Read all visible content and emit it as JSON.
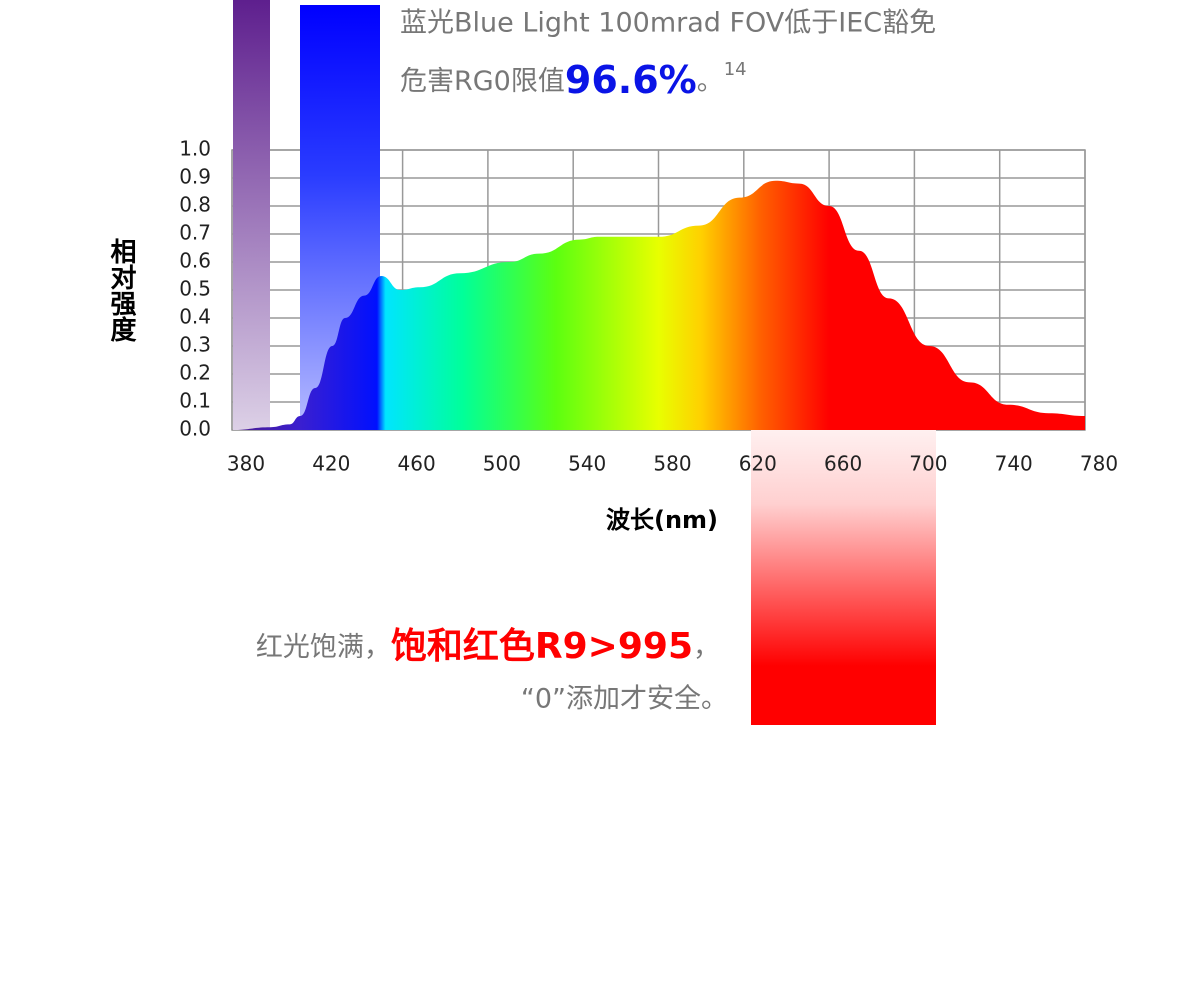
{
  "chart_data": {
    "type": "area",
    "annotations": {
      "blue_line1": "蓝光Blue Light 100mrad FOV低于IEC豁免",
      "blue_line2": "危害RG0限值",
      "blue_value": "96.6%",
      "blue_end": "。",
      "blue_note": "14",
      "red_lead": "红光饱满，",
      "red_value": "饱和红色R9>995",
      "red_comma": "，",
      "red_line2": "“0”添加才安全。"
    },
    "ylabel": "相对强度",
    "xlabel": "波长(nm)",
    "x": [
      380,
      398,
      407,
      412,
      419,
      427,
      433,
      442,
      450,
      459,
      468,
      487,
      510,
      524,
      543,
      552,
      580,
      599,
      618,
      635,
      646,
      660,
      674,
      688,
      707,
      726,
      744,
      763,
      780
    ],
    "values": [
      0,
      0.01,
      0.02,
      0.05,
      0.15,
      0.3,
      0.4,
      0.48,
      0.55,
      0.5,
      0.51,
      0.56,
      0.6,
      0.63,
      0.68,
      0.69,
      0.69,
      0.73,
      0.83,
      0.89,
      0.88,
      0.8,
      0.64,
      0.47,
      0.3,
      0.17,
      0.09,
      0.06,
      0.05
    ],
    "xlim": [
      380,
      780
    ],
    "xticks": [
      380,
      420,
      460,
      500,
      540,
      580,
      620,
      660,
      700,
      740,
      780
    ],
    "ylim": [
      0,
      1
    ],
    "yticks": [
      {
        "value": 0,
        "label": "0.0"
      },
      0.1,
      0.2,
      0.3,
      0.4,
      0.5,
      0.6,
      0.7,
      0.8,
      0.9,
      {
        "value": 1,
        "label": "1.0"
      }
    ],
    "grid": true
  }
}
